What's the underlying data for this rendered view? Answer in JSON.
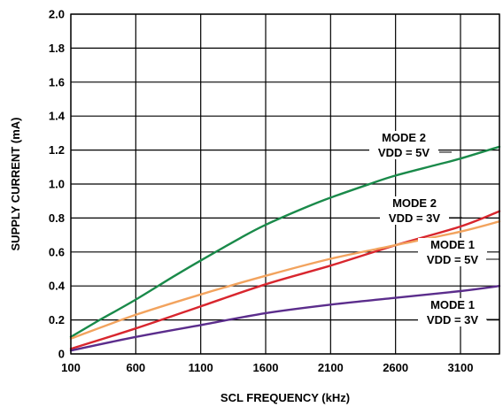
{
  "chart_data": {
    "type": "line",
    "title": "",
    "xlabel": "SCL FREQUENCY (kHz)",
    "ylabel": "SUPPLY CURRENT (mA)",
    "xlim": [
      100,
      3400
    ],
    "ylim": [
      0,
      2.0
    ],
    "xticks": [
      100,
      600,
      1100,
      1600,
      2100,
      2600,
      3100
    ],
    "yticks": [
      0,
      0.2,
      0.4,
      0.6,
      0.8,
      1.0,
      1.2,
      1.4,
      1.6,
      1.8,
      2.0
    ],
    "ytick_labels": [
      "0",
      "0.2",
      "0.4",
      "0.6",
      "0.8",
      "1.0",
      "1.2",
      "1.4",
      "1.6",
      "1.8",
      "2.0"
    ],
    "grid": true,
    "legend": "none",
    "series": [
      {
        "id": "mode2-5v",
        "color": "#1a8a4a",
        "label_line1": "MODE 2",
        "label_line2": "VDD = 5V",
        "x": [
          100,
          300,
          600,
          900,
          1100,
          1400,
          1600,
          1900,
          2100,
          2400,
          2600,
          2900,
          3100,
          3400
        ],
        "y": [
          0.1,
          0.19,
          0.32,
          0.46,
          0.55,
          0.68,
          0.76,
          0.86,
          0.92,
          1.0,
          1.05,
          1.11,
          1.15,
          1.22
        ]
      },
      {
        "id": "mode2-3v",
        "color": "#d8262e",
        "label_line1": "MODE 2",
        "label_line2": "VDD = 3V",
        "x": [
          100,
          600,
          1100,
          1600,
          2100,
          2600,
          3100,
          3400
        ],
        "y": [
          0.03,
          0.15,
          0.28,
          0.41,
          0.52,
          0.64,
          0.75,
          0.84
        ]
      },
      {
        "id": "mode1-5v",
        "color": "#f2a35e",
        "label_line1": "MODE 1",
        "label_line2": "VDD = 5V",
        "x": [
          100,
          600,
          1100,
          1600,
          2100,
          2600,
          3100,
          3400
        ],
        "y": [
          0.09,
          0.23,
          0.35,
          0.46,
          0.56,
          0.64,
          0.72,
          0.78
        ]
      },
      {
        "id": "mode1-3v",
        "color": "#5b2d8c",
        "label_line1": "MODE 1",
        "label_line2": "VDD = 3V",
        "x": [
          100,
          600,
          1100,
          1600,
          2100,
          2600,
          3100,
          3400
        ],
        "y": [
          0.02,
          0.1,
          0.17,
          0.24,
          0.29,
          0.33,
          0.37,
          0.4
        ]
      }
    ]
  }
}
